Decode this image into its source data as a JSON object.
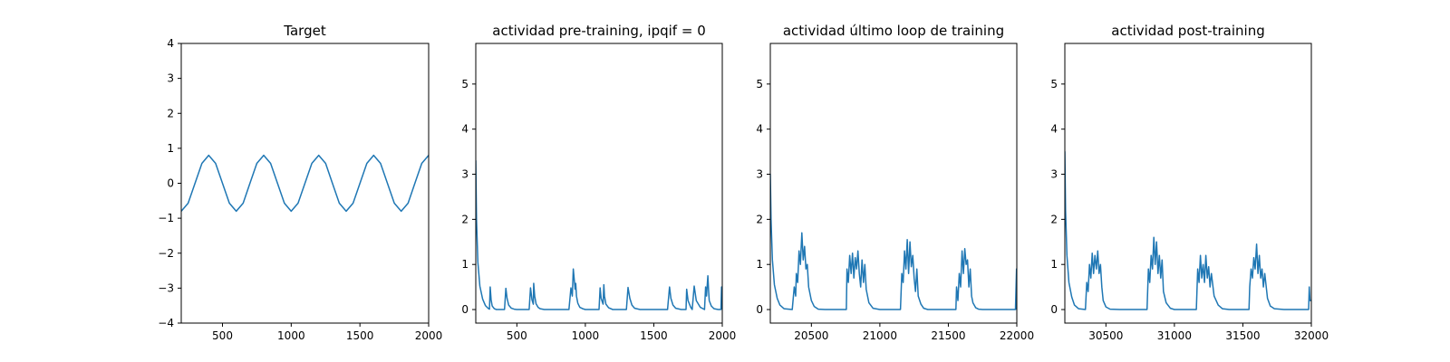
{
  "chart_data": [
    {
      "type": "line",
      "title": "Target",
      "xlim": [
        200,
        2000
      ],
      "ylim": [
        -4,
        4
      ],
      "xticks": [
        500,
        1000,
        1500,
        2000
      ],
      "yticks": [
        -4,
        -3,
        -2,
        -1,
        0,
        1,
        2,
        3,
        4
      ],
      "color": "#1f77b4",
      "series": [
        {
          "x": [
            200,
            250,
            300,
            350,
            400,
            450,
            500,
            550,
            600,
            650,
            700,
            750,
            800,
            850,
            900,
            950,
            1000,
            1050,
            1100,
            1150,
            1200,
            1250,
            1300,
            1350,
            1400,
            1450,
            1500,
            1550,
            1600,
            1650,
            1700,
            1750,
            1800,
            1850,
            1900,
            1950,
            2000
          ],
          "y": [
            -0.8,
            -0.57,
            0.0,
            0.57,
            0.8,
            0.57,
            0.0,
            -0.57,
            -0.8,
            -0.57,
            0.0,
            0.57,
            0.8,
            0.57,
            0.0,
            -0.57,
            -0.8,
            -0.57,
            0.0,
            0.57,
            0.8,
            0.57,
            0.0,
            -0.57,
            -0.8,
            -0.57,
            0.0,
            0.57,
            0.8,
            0.57,
            0.0,
            -0.57,
            -0.8,
            -0.57,
            0.0,
            0.57,
            0.8
          ]
        }
      ]
    },
    {
      "type": "line",
      "title": "actividad pre-training, ipqif = 0",
      "xlim": [
        200,
        2000
      ],
      "ylim": [
        -0.3,
        5.9
      ],
      "xticks": [
        500,
        1000,
        1500,
        2000
      ],
      "yticks": [
        0,
        1,
        2,
        3,
        4,
        5
      ],
      "color": "#1f77b4",
      "series": [
        {
          "x": [
            200,
            205,
            215,
            230,
            250,
            270,
            290,
            300,
            305,
            312,
            320,
            335,
            350,
            380,
            410,
            420,
            428,
            440,
            460,
            480,
            500,
            560,
            590,
            600,
            610,
            620,
            623,
            630,
            640,
            655,
            670,
            700,
            760,
            800,
            880,
            895,
            905,
            912,
            925,
            930,
            935,
            945,
            960,
            980,
            1000,
            1060,
            1100,
            1108,
            1115,
            1130,
            1135,
            1140,
            1150,
            1170,
            1200,
            1260,
            1300,
            1312,
            1325,
            1340,
            1360,
            1400,
            1500,
            1600,
            1615,
            1625,
            1640,
            1660,
            1700,
            1735,
            1740,
            1750,
            1770,
            1780,
            1795,
            1810,
            1840,
            1870,
            1878,
            1885,
            1895,
            1900,
            1905,
            1920,
            1940,
            1970,
            1985,
            1990,
            1995,
            2000
          ],
          "y": [
            3.3,
            2.0,
            1.05,
            0.52,
            0.23,
            0.09,
            0.03,
            0.01,
            0.5,
            0.22,
            0.08,
            0.02,
            0.0,
            0.0,
            0.0,
            0.47,
            0.25,
            0.1,
            0.03,
            0.01,
            0.0,
            0.0,
            0.0,
            0.48,
            0.22,
            0.12,
            0.58,
            0.3,
            0.13,
            0.05,
            0.02,
            0.0,
            0.0,
            0.0,
            0.0,
            0.48,
            0.3,
            0.9,
            0.45,
            0.58,
            0.3,
            0.14,
            0.05,
            0.02,
            0.0,
            0.0,
            0.0,
            0.48,
            0.25,
            0.12,
            0.55,
            0.3,
            0.12,
            0.04,
            0.0,
            0.0,
            0.0,
            0.49,
            0.25,
            0.1,
            0.03,
            0.0,
            0.0,
            0.0,
            0.5,
            0.25,
            0.1,
            0.03,
            0.0,
            0.0,
            0.45,
            0.2,
            0.05,
            0.0,
            0.52,
            0.2,
            0.05,
            0.0,
            0.5,
            0.3,
            0.75,
            0.42,
            0.2,
            0.08,
            0.02,
            0.0,
            0.0,
            0.0,
            0.5,
            0.0
          ]
        }
      ]
    },
    {
      "type": "line",
      "title": "actividad último loop de training",
      "xlim": [
        20200,
        22000
      ],
      "ylim": [
        -0.3,
        5.9
      ],
      "xticks": [
        20500,
        21000,
        21500,
        22000
      ],
      "yticks": [
        0,
        1,
        2,
        3,
        4,
        5
      ],
      "color": "#1f77b4",
      "series": [
        {
          "x": [
            20200,
            20205,
            20215,
            20230,
            20250,
            20270,
            20300,
            20360,
            20375,
            20385,
            20390,
            20400,
            20410,
            20420,
            20430,
            20440,
            20450,
            20460,
            20470,
            20480,
            20500,
            20520,
            20550,
            20600,
            20700,
            20755,
            20760,
            20770,
            20780,
            20790,
            20800,
            20810,
            20820,
            20830,
            20840,
            20850,
            20860,
            20870,
            20880,
            20890,
            20900,
            20920,
            20950,
            21000,
            21100,
            21150,
            21160,
            21170,
            21180,
            21190,
            21200,
            21210,
            21220,
            21230,
            21240,
            21250,
            21260,
            21270,
            21280,
            21300,
            21320,
            21350,
            21400,
            21500,
            21555,
            21560,
            21570,
            21580,
            21590,
            21600,
            21610,
            21620,
            21630,
            21640,
            21650,
            21660,
            21670,
            21680,
            21700,
            21720,
            21750,
            21800,
            21990,
            21998,
            22000
          ],
          "y": [
            3.0,
            2.0,
            1.1,
            0.55,
            0.25,
            0.1,
            0.02,
            0.0,
            0.5,
            0.3,
            0.8,
            0.6,
            1.3,
            1.0,
            1.7,
            1.1,
            1.4,
            0.9,
            1.0,
            0.5,
            0.2,
            0.07,
            0.01,
            0.0,
            0.0,
            0.0,
            0.9,
            0.6,
            1.2,
            0.8,
            1.25,
            0.7,
            1.15,
            0.9,
            1.3,
            0.8,
            0.5,
            1.1,
            0.6,
            1.0,
            0.45,
            0.15,
            0.03,
            0.0,
            0.0,
            0.0,
            0.8,
            0.6,
            1.3,
            0.9,
            1.55,
            0.8,
            1.5,
            0.95,
            1.2,
            0.7,
            0.4,
            0.9,
            0.3,
            0.12,
            0.03,
            0.0,
            0.0,
            0.0,
            0.0,
            0.5,
            0.2,
            0.8,
            0.5,
            1.3,
            0.8,
            1.35,
            1.0,
            1.1,
            0.5,
            0.9,
            0.3,
            0.15,
            0.04,
            0.01,
            0.0,
            0.0,
            0.0,
            0.9,
            0.0
          ]
        }
      ]
    },
    {
      "type": "line",
      "title": "actividad post-training",
      "xlim": [
        30200,
        32000
      ],
      "ylim": [
        -0.3,
        5.9
      ],
      "xticks": [
        30500,
        31000,
        31500,
        32000
      ],
      "yticks": [
        0,
        1,
        2,
        3,
        4,
        5
      ],
      "color": "#1f77b4",
      "series": [
        {
          "x": [
            30200,
            30205,
            30215,
            30230,
            30250,
            30270,
            30300,
            30350,
            30360,
            30370,
            30380,
            30390,
            30400,
            30410,
            30420,
            30430,
            30440,
            30450,
            30460,
            30470,
            30480,
            30500,
            30530,
            30600,
            30800,
            30810,
            30820,
            30830,
            30840,
            30850,
            30860,
            30870,
            30880,
            30890,
            30900,
            30910,
            30920,
            30940,
            30970,
            31000,
            31100,
            31160,
            31170,
            31180,
            31190,
            31200,
            31210,
            31220,
            31230,
            31240,
            31250,
            31260,
            31270,
            31290,
            31320,
            31350,
            31400,
            31545,
            31550,
            31560,
            31570,
            31580,
            31590,
            31600,
            31610,
            31620,
            31630,
            31640,
            31650,
            31660,
            31680,
            31700,
            31730,
            31800,
            31900,
            31980,
            31985,
            31990,
            32000
          ],
          "y": [
            3.5,
            2.2,
            1.2,
            0.6,
            0.28,
            0.1,
            0.02,
            0.0,
            0.6,
            0.4,
            1.0,
            0.7,
            1.25,
            0.8,
            1.2,
            0.9,
            1.3,
            0.8,
            1.0,
            0.5,
            0.2,
            0.06,
            0.01,
            0.0,
            0.0,
            0.9,
            0.6,
            1.2,
            0.9,
            1.6,
            1.0,
            1.5,
            0.8,
            1.2,
            0.7,
            1.1,
            0.4,
            0.15,
            0.03,
            0.0,
            0.0,
            0.0,
            0.9,
            0.6,
            1.2,
            0.7,
            1.0,
            0.6,
            1.2,
            0.7,
            0.95,
            0.5,
            0.8,
            0.3,
            0.1,
            0.02,
            0.0,
            0.0,
            0.5,
            0.9,
            0.7,
            1.15,
            0.9,
            1.45,
            0.8,
            1.2,
            0.7,
            0.9,
            0.5,
            0.8,
            0.25,
            0.08,
            0.02,
            0.0,
            0.0,
            0.0,
            0.5,
            0.2,
            0.2
          ]
        }
      ]
    }
  ]
}
